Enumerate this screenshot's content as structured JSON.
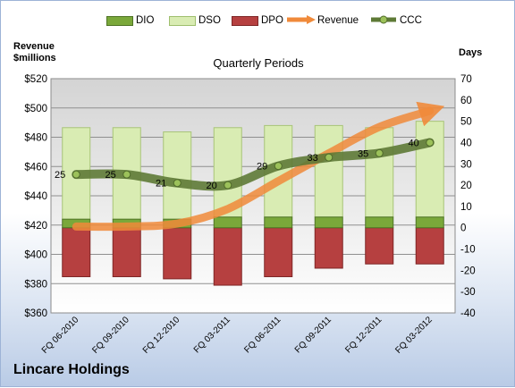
{
  "chart_data": {
    "type": "bar",
    "title": "Quarterly Periods",
    "company": "Lincare Holdings",
    "ylabel_left": "Revenue\n$millions",
    "ylabel_right": "Days",
    "categories": [
      "FQ 06-2010",
      "FQ 09-2010",
      "FQ 12-2010",
      "FQ 03-2011",
      "FQ 06-2011",
      "FQ 09-2011",
      "FQ 12-2011",
      "FQ 03-2012"
    ],
    "y_left": {
      "min": 360,
      "max": 520,
      "step": 20,
      "prefix": "$"
    },
    "y_right": {
      "min": -40,
      "max": 70,
      "step": 10
    },
    "grid": true,
    "legend_position": "top",
    "series": [
      {
        "name": "DIO",
        "type": "stacked-bar",
        "axis": "right",
        "color": "#7aa83a",
        "values": [
          4,
          4,
          4,
          5,
          5,
          5,
          5,
          5
        ]
      },
      {
        "name": "DSO",
        "type": "stacked-bar",
        "axis": "right",
        "color": "#d9ecb3",
        "values": [
          43,
          43,
          41,
          42,
          43,
          43,
          42,
          45
        ]
      },
      {
        "name": "DPO",
        "type": "stacked-bar",
        "axis": "right",
        "color": "#b64040",
        "values": [
          -23,
          -23,
          -24,
          -27,
          -23,
          -19,
          -17,
          -17
        ]
      },
      {
        "name": "Revenue",
        "type": "arrow-line",
        "axis": "left",
        "color": "#f08a3a",
        "values": [
          419,
          419,
          421,
          431,
          450,
          469,
          487,
          498
        ]
      },
      {
        "name": "CCC",
        "type": "line",
        "axis": "right",
        "color": "#5e7a36",
        "values": [
          25,
          25,
          21,
          20,
          29,
          33,
          35,
          40
        ]
      }
    ]
  }
}
